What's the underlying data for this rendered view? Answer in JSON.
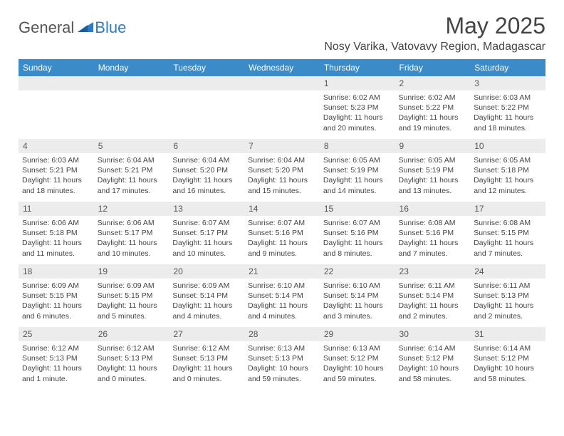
{
  "logo": {
    "part1": "General",
    "part2": "Blue"
  },
  "title": "May 2025",
  "location": "Nosy Varika, Vatovavy Region, Madagascar",
  "colors": {
    "header_bg": "#3b8bc9",
    "header_fg": "#ffffff",
    "daynum_bg": "#ececec",
    "text": "#444444",
    "logo_gray": "#555555",
    "logo_blue": "#2f7bbf",
    "background": "#ffffff"
  },
  "weekdays": [
    "Sunday",
    "Monday",
    "Tuesday",
    "Wednesday",
    "Thursday",
    "Friday",
    "Saturday"
  ],
  "weeks": [
    [
      {
        "n": "",
        "lines": []
      },
      {
        "n": "",
        "lines": []
      },
      {
        "n": "",
        "lines": []
      },
      {
        "n": "",
        "lines": []
      },
      {
        "n": "1",
        "lines": [
          "Sunrise: 6:02 AM",
          "Sunset: 5:23 PM",
          "Daylight: 11 hours and 20 minutes."
        ]
      },
      {
        "n": "2",
        "lines": [
          "Sunrise: 6:02 AM",
          "Sunset: 5:22 PM",
          "Daylight: 11 hours and 19 minutes."
        ]
      },
      {
        "n": "3",
        "lines": [
          "Sunrise: 6:03 AM",
          "Sunset: 5:22 PM",
          "Daylight: 11 hours and 18 minutes."
        ]
      }
    ],
    [
      {
        "n": "4",
        "lines": [
          "Sunrise: 6:03 AM",
          "Sunset: 5:21 PM",
          "Daylight: 11 hours and 18 minutes."
        ]
      },
      {
        "n": "5",
        "lines": [
          "Sunrise: 6:04 AM",
          "Sunset: 5:21 PM",
          "Daylight: 11 hours and 17 minutes."
        ]
      },
      {
        "n": "6",
        "lines": [
          "Sunrise: 6:04 AM",
          "Sunset: 5:20 PM",
          "Daylight: 11 hours and 16 minutes."
        ]
      },
      {
        "n": "7",
        "lines": [
          "Sunrise: 6:04 AM",
          "Sunset: 5:20 PM",
          "Daylight: 11 hours and 15 minutes."
        ]
      },
      {
        "n": "8",
        "lines": [
          "Sunrise: 6:05 AM",
          "Sunset: 5:19 PM",
          "Daylight: 11 hours and 14 minutes."
        ]
      },
      {
        "n": "9",
        "lines": [
          "Sunrise: 6:05 AM",
          "Sunset: 5:19 PM",
          "Daylight: 11 hours and 13 minutes."
        ]
      },
      {
        "n": "10",
        "lines": [
          "Sunrise: 6:05 AM",
          "Sunset: 5:18 PM",
          "Daylight: 11 hours and 12 minutes."
        ]
      }
    ],
    [
      {
        "n": "11",
        "lines": [
          "Sunrise: 6:06 AM",
          "Sunset: 5:18 PM",
          "Daylight: 11 hours and 11 minutes."
        ]
      },
      {
        "n": "12",
        "lines": [
          "Sunrise: 6:06 AM",
          "Sunset: 5:17 PM",
          "Daylight: 11 hours and 10 minutes."
        ]
      },
      {
        "n": "13",
        "lines": [
          "Sunrise: 6:07 AM",
          "Sunset: 5:17 PM",
          "Daylight: 11 hours and 10 minutes."
        ]
      },
      {
        "n": "14",
        "lines": [
          "Sunrise: 6:07 AM",
          "Sunset: 5:16 PM",
          "Daylight: 11 hours and 9 minutes."
        ]
      },
      {
        "n": "15",
        "lines": [
          "Sunrise: 6:07 AM",
          "Sunset: 5:16 PM",
          "Daylight: 11 hours and 8 minutes."
        ]
      },
      {
        "n": "16",
        "lines": [
          "Sunrise: 6:08 AM",
          "Sunset: 5:16 PM",
          "Daylight: 11 hours and 7 minutes."
        ]
      },
      {
        "n": "17",
        "lines": [
          "Sunrise: 6:08 AM",
          "Sunset: 5:15 PM",
          "Daylight: 11 hours and 7 minutes."
        ]
      }
    ],
    [
      {
        "n": "18",
        "lines": [
          "Sunrise: 6:09 AM",
          "Sunset: 5:15 PM",
          "Daylight: 11 hours and 6 minutes."
        ]
      },
      {
        "n": "19",
        "lines": [
          "Sunrise: 6:09 AM",
          "Sunset: 5:15 PM",
          "Daylight: 11 hours and 5 minutes."
        ]
      },
      {
        "n": "20",
        "lines": [
          "Sunrise: 6:09 AM",
          "Sunset: 5:14 PM",
          "Daylight: 11 hours and 4 minutes."
        ]
      },
      {
        "n": "21",
        "lines": [
          "Sunrise: 6:10 AM",
          "Sunset: 5:14 PM",
          "Daylight: 11 hours and 4 minutes."
        ]
      },
      {
        "n": "22",
        "lines": [
          "Sunrise: 6:10 AM",
          "Sunset: 5:14 PM",
          "Daylight: 11 hours and 3 minutes."
        ]
      },
      {
        "n": "23",
        "lines": [
          "Sunrise: 6:11 AM",
          "Sunset: 5:14 PM",
          "Daylight: 11 hours and 2 minutes."
        ]
      },
      {
        "n": "24",
        "lines": [
          "Sunrise: 6:11 AM",
          "Sunset: 5:13 PM",
          "Daylight: 11 hours and 2 minutes."
        ]
      }
    ],
    [
      {
        "n": "25",
        "lines": [
          "Sunrise: 6:12 AM",
          "Sunset: 5:13 PM",
          "Daylight: 11 hours and 1 minute."
        ]
      },
      {
        "n": "26",
        "lines": [
          "Sunrise: 6:12 AM",
          "Sunset: 5:13 PM",
          "Daylight: 11 hours and 0 minutes."
        ]
      },
      {
        "n": "27",
        "lines": [
          "Sunrise: 6:12 AM",
          "Sunset: 5:13 PM",
          "Daylight: 11 hours and 0 minutes."
        ]
      },
      {
        "n": "28",
        "lines": [
          "Sunrise: 6:13 AM",
          "Sunset: 5:13 PM",
          "Daylight: 10 hours and 59 minutes."
        ]
      },
      {
        "n": "29",
        "lines": [
          "Sunrise: 6:13 AM",
          "Sunset: 5:12 PM",
          "Daylight: 10 hours and 59 minutes."
        ]
      },
      {
        "n": "30",
        "lines": [
          "Sunrise: 6:14 AM",
          "Sunset: 5:12 PM",
          "Daylight: 10 hours and 58 minutes."
        ]
      },
      {
        "n": "31",
        "lines": [
          "Sunrise: 6:14 AM",
          "Sunset: 5:12 PM",
          "Daylight: 10 hours and 58 minutes."
        ]
      }
    ]
  ]
}
